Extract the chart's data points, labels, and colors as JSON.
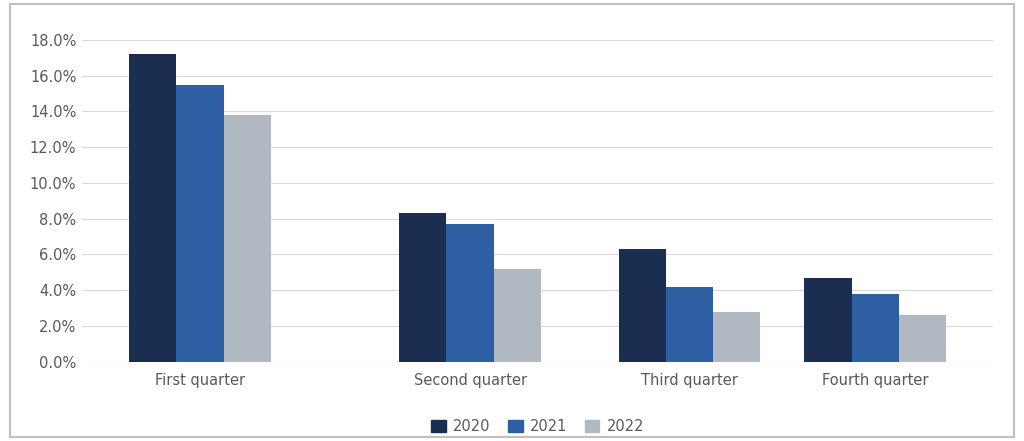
{
  "categories": [
    "First quarter",
    "Second quarter",
    "Third quarter",
    "Fourth quarter"
  ],
  "series": {
    "2020": [
      0.172,
      0.083,
      0.063,
      0.047
    ],
    "2021": [
      0.155,
      0.077,
      0.042,
      0.038
    ],
    "2022": [
      0.138,
      0.052,
      0.028,
      0.026
    ]
  },
  "colors": {
    "2020": "#1a2e52",
    "2021": "#2e5fa3",
    "2022": "#b0b8c1"
  },
  "ylim": [
    0,
    0.19
  ],
  "yticks": [
    0.0,
    0.02,
    0.04,
    0.06,
    0.08,
    0.1,
    0.12,
    0.14,
    0.16,
    0.18
  ],
  "legend_labels": [
    "2020",
    "2021",
    "2022"
  ],
  "background_color": "#ffffff",
  "plot_bg_color": "#ffffff",
  "grid_color": "#d9d9d9",
  "bar_width": 0.28,
  "font_color": "#595959",
  "tick_fontsize": 10.5,
  "legend_fontsize": 10.5,
  "border_color": "#bfbfbf"
}
